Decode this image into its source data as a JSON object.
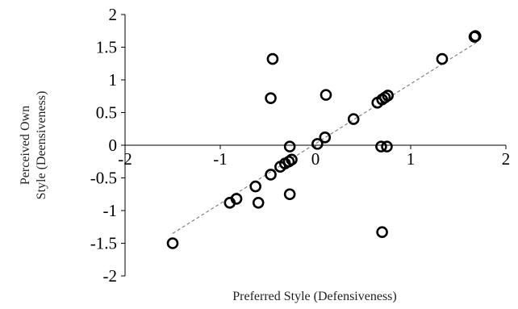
{
  "chart_data": {
    "type": "scatter",
    "title": "",
    "xlabel": "Preferred Style (Defensiveness)",
    "ylabel_lines": [
      "Perceived Own",
      "Style (Deensiveness)"
    ],
    "xlim": [
      -2,
      2
    ],
    "ylim": [
      -2,
      2
    ],
    "x_ticks": [
      "-2",
      "-1",
      "0",
      "1",
      "2"
    ],
    "y_ticks": [
      "2",
      "1.5",
      "1",
      "0.5",
      "0",
      "-0.5",
      "-1",
      "-1.5",
      "-2"
    ],
    "grid": false,
    "trendline": {
      "style": "dashed",
      "from": [
        -1.5,
        -1.35
      ],
      "to": [
        1.7,
        1.58
      ]
    },
    "points": [
      {
        "x": -1.5,
        "y": -1.5
      },
      {
        "x": -0.9,
        "y": -0.88
      },
      {
        "x": -0.83,
        "y": -0.82
      },
      {
        "x": -0.63,
        "y": -0.63
      },
      {
        "x": -0.6,
        "y": -0.88
      },
      {
        "x": -0.47,
        "y": -0.45
      },
      {
        "x": -0.47,
        "y": 0.72
      },
      {
        "x": -0.45,
        "y": 1.32
      },
      {
        "x": -0.37,
        "y": -0.33
      },
      {
        "x": -0.32,
        "y": -0.28
      },
      {
        "x": -0.28,
        "y": -0.25
      },
      {
        "x": -0.25,
        "y": -0.22
      },
      {
        "x": -0.27,
        "y": -0.75
      },
      {
        "x": -0.27,
        "y": -0.02
      },
      {
        "x": 0.02,
        "y": 0.02
      },
      {
        "x": 0.1,
        "y": 0.12
      },
      {
        "x": 0.11,
        "y": 0.77
      },
      {
        "x": 0.4,
        "y": 0.4
      },
      {
        "x": 0.65,
        "y": 0.65
      },
      {
        "x": 0.7,
        "y": 0.7
      },
      {
        "x": 0.73,
        "y": 0.73
      },
      {
        "x": 0.76,
        "y": 0.76
      },
      {
        "x": 0.69,
        "y": -0.02
      },
      {
        "x": 0.75,
        "y": -0.02
      },
      {
        "x": 0.7,
        "y": -1.33
      },
      {
        "x": 1.33,
        "y": 1.32
      },
      {
        "x": 1.67,
        "y": 1.66
      },
      {
        "x": 1.68,
        "y": 1.67
      }
    ]
  }
}
